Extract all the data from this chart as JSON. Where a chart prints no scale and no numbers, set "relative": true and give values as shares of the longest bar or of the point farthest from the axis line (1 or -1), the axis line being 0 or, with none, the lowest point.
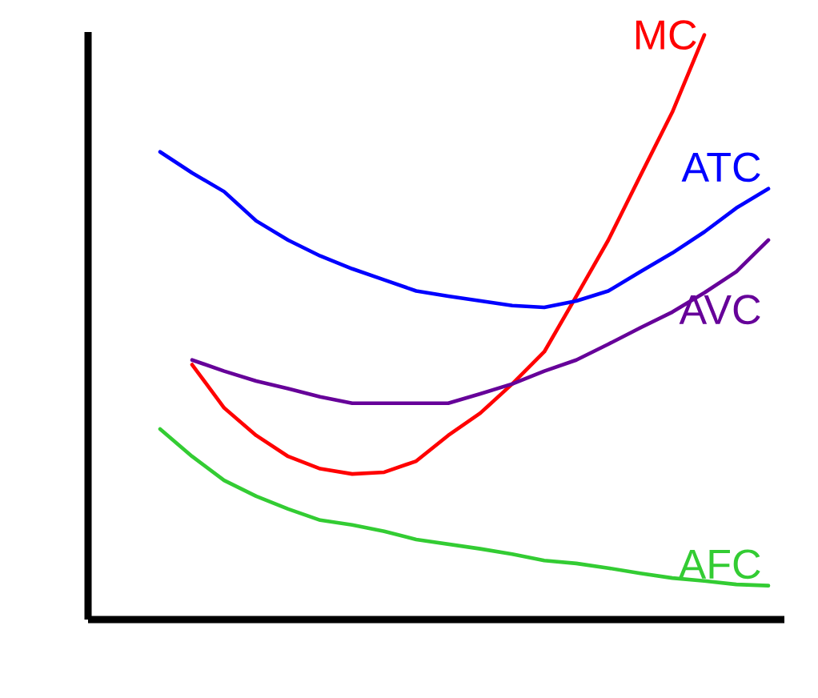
{
  "chart_data": {
    "type": "line",
    "relative": true,
    "categories": [
      null,
      null,
      null,
      null,
      null,
      null,
      null,
      null,
      null,
      null,
      null,
      null,
      null,
      null,
      null,
      null,
      null,
      null,
      null,
      null
    ],
    "series": [
      {
        "name": "MC",
        "color": "#ff0000",
        "values": [
          null,
          0.436,
          0.362,
          0.315,
          0.279,
          0.258,
          0.249,
          0.252,
          0.271,
          0.315,
          0.353,
          0.403,
          0.458,
          0.553,
          0.649,
          0.759,
          0.868,
          1,
          null,
          null
        ]
      },
      {
        "name": "ATC",
        "color": "#0000ff",
        "values": [
          0.8,
          0.764,
          0.732,
          0.682,
          0.649,
          0.622,
          0.6,
          0.581,
          0.562,
          0.553,
          0.545,
          0.537,
          0.534,
          0.545,
          0.562,
          0.595,
          0.627,
          0.663,
          0.704,
          0.737
        ]
      },
      {
        "name": "AVC",
        "color": "#660099",
        "values": [
          null,
          0.444,
          0.425,
          0.408,
          0.395,
          0.381,
          0.37,
          0.37,
          0.37,
          0.37,
          0.386,
          0.403,
          0.425,
          0.444,
          0.471,
          0.499,
          0.526,
          0.559,
          0.595,
          0.649
        ]
      },
      {
        "name": "AFC",
        "color": "#33cc33",
        "values": [
          0.326,
          0.279,
          0.238,
          0.211,
          0.189,
          0.17,
          0.162,
          0.151,
          0.137,
          0.129,
          0.121,
          0.112,
          0.101,
          0.096,
          0.088,
          0.079,
          0.071,
          0.066,
          0.06,
          0.058
        ]
      }
    ]
  }
}
